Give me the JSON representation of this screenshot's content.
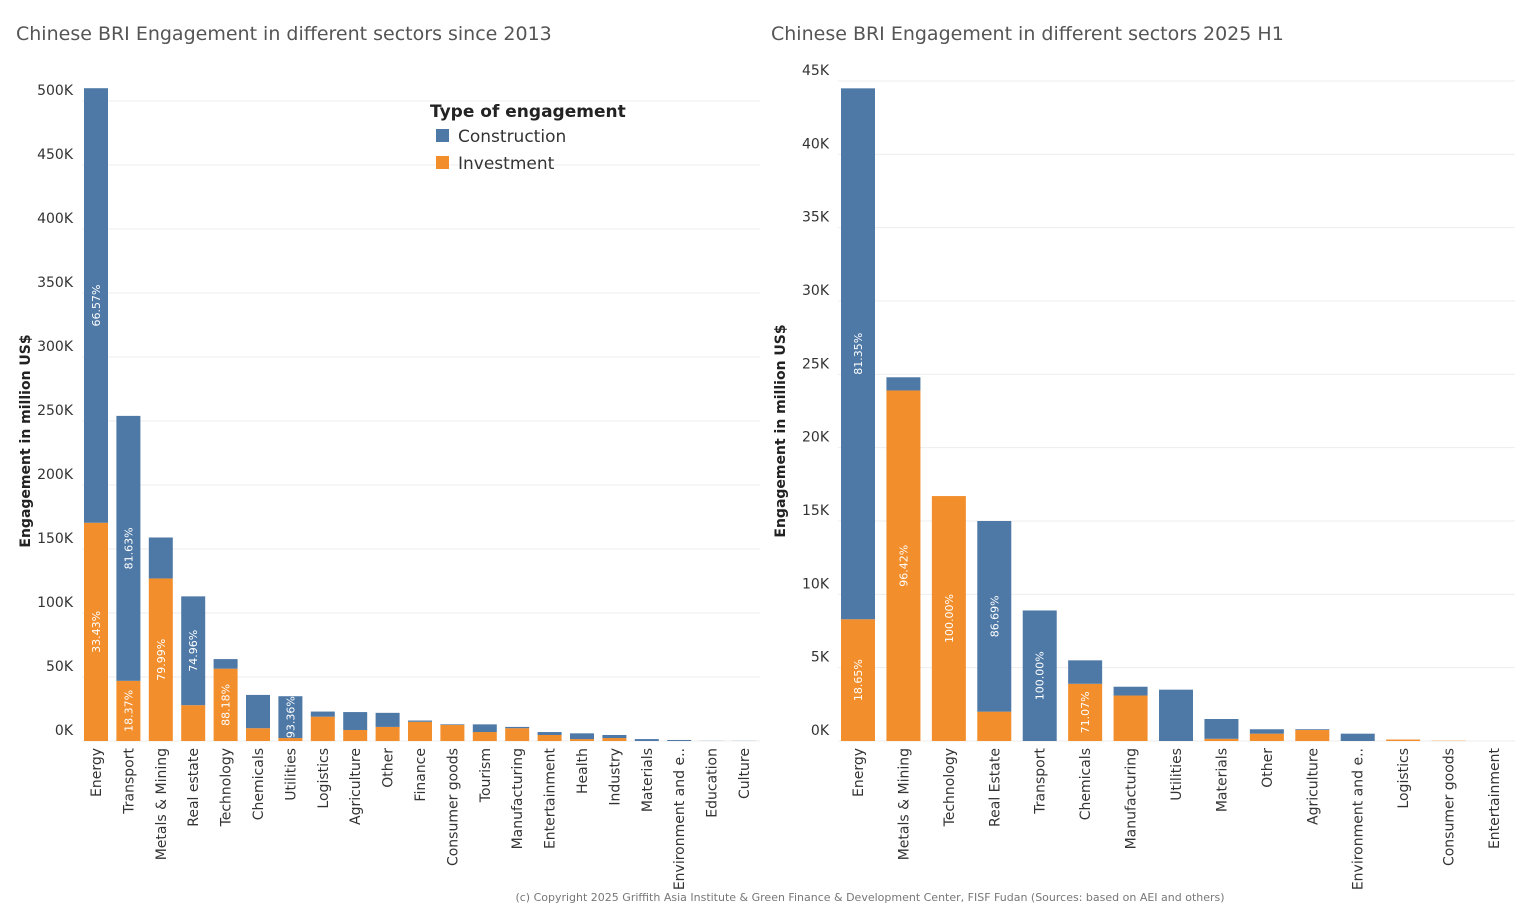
{
  "colors": {
    "construction": "#4e79a7",
    "investment": "#f28e2b",
    "grid": "#ededed"
  },
  "legend": {
    "title": "Type of engagement",
    "items": [
      "Construction",
      "Investment"
    ],
    "placement": "top-right of left chart"
  },
  "footer": "(c) Copyright 2025 Griffith Asia Institute & Green Finance & Development Center, FISF Fudan (Sources: based on AEI and others)",
  "chart_data": [
    {
      "type": "bar",
      "stacked": true,
      "title": "Chinese BRI Engagement in different sectors since 2013",
      "ylabel": "Engagement in million US$",
      "xlabel": "",
      "ylim": [
        0,
        510
      ],
      "yticks": [
        0,
        50,
        100,
        150,
        200,
        250,
        300,
        350,
        400,
        450,
        500
      ],
      "ytick_labels": [
        "0K",
        "50K",
        "100K",
        "150K",
        "200K",
        "250K",
        "300K",
        "350K",
        "400K",
        "450K",
        "500K"
      ],
      "grid": true,
      "unit": "thousand million US$",
      "categories": [
        "Energy",
        "Transport",
        "Metals & Mining",
        "Real estate",
        "Technology",
        "Chemicals",
        "Utilities",
        "Logistics",
        "Agriculture",
        "Other",
        "Finance",
        "Consumer goods",
        "Tourism",
        "Manufacturing",
        "Entertainment",
        "Health",
        "Industry",
        "Materials",
        "Environment and e..",
        "Education",
        "Culture"
      ],
      "series": [
        {
          "name": "Construction",
          "values": [
            339.5,
            207,
            32,
            85,
            7.5,
            26,
            32.7,
            4,
            14,
            11,
            1,
            0.5,
            6,
            1,
            2.3,
            4.5,
            2.4,
            1.5,
            0.8,
            0.1,
            0.1
          ],
          "labels": [
            "66.57%",
            "81.63%",
            "",
            "74.96%",
            "",
            "",
            "93.36%",
            "",
            "",
            "",
            "",
            "",
            "",
            "",
            "",
            "",
            "",
            "",
            "",
            "",
            ""
          ]
        },
        {
          "name": "Investment",
          "values": [
            170.5,
            47,
            127,
            28,
            56.5,
            10,
            2.3,
            19,
            8.6,
            11,
            15,
            12.5,
            7,
            10,
            4.7,
            1.5,
            2.3,
            0,
            0,
            0,
            0
          ],
          "labels": [
            "33.43%",
            "18.37%",
            "79.99%",
            "",
            "88.18%",
            "",
            "",
            "",
            "",
            "",
            "",
            "",
            "",
            "",
            "",
            "",
            "",
            "",
            "",
            "",
            ""
          ]
        }
      ]
    },
    {
      "type": "bar",
      "stacked": true,
      "title": "Chinese BRI Engagement in different sectors 2025 H1",
      "ylabel": "Engagement in million US$",
      "xlabel": "",
      "ylim": [
        0,
        45
      ],
      "yticks": [
        0,
        5,
        10,
        15,
        20,
        25,
        30,
        35,
        40,
        45
      ],
      "ytick_labels": [
        "0K",
        "5K",
        "10K",
        "15K",
        "20K",
        "25K",
        "30K",
        "35K",
        "40K",
        "45K"
      ],
      "grid": true,
      "unit": "thousand million US$",
      "categories": [
        "Energy",
        "Metals & Mining",
        "Technology",
        "Real Estate",
        "Transport",
        "Chemicals",
        "Manufacturing",
        "Utilities",
        "Materials",
        "Other",
        "Agriculture",
        "Environment and e..",
        "Logistics",
        "Consumer goods",
        "Entertainment"
      ],
      "series": [
        {
          "name": "Construction",
          "values": [
            36.2,
            0.9,
            0,
            13,
            8.9,
            1.6,
            0.6,
            3.5,
            1.35,
            0.3,
            0.05,
            0.5,
            0,
            0,
            0
          ],
          "labels": [
            "81.35%",
            "",
            "",
            "86.69%",
            "100.00%",
            "",
            "",
            "",
            "",
            "",
            "",
            "",
            "",
            "",
            ""
          ]
        },
        {
          "name": "Investment",
          "values": [
            8.3,
            23.9,
            16.7,
            2,
            0,
            3.9,
            3.1,
            0,
            0.15,
            0.5,
            0.75,
            0,
            0.1,
            0.02,
            0
          ],
          "labels": [
            "18.65%",
            "96.42%",
            "100.00%",
            "",
            "",
            "71.07%",
            "",
            "",
            "",
            "",
            "",
            "",
            "",
            "",
            ""
          ]
        }
      ]
    }
  ]
}
